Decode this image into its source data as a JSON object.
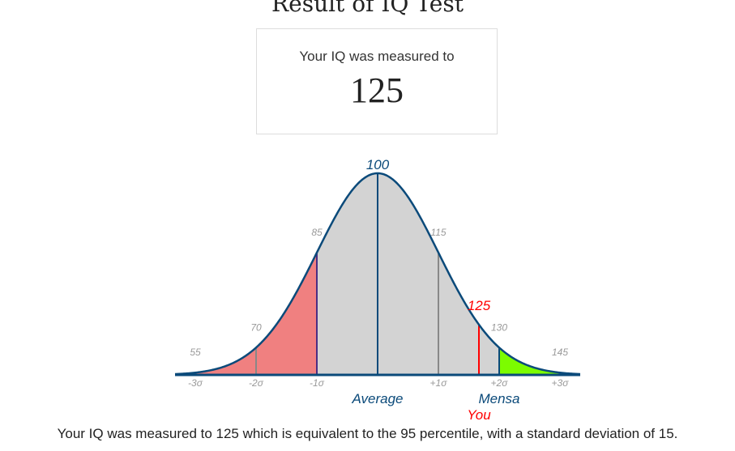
{
  "page": {
    "title": "Result of IQ Test",
    "result_label": "Your IQ was measured to",
    "result_value": "125",
    "summary": "Your IQ was measured to 125 which is equivalent to the 95 percentile, with a standard deviation of 15."
  },
  "chart_data": {
    "type": "area",
    "title": "",
    "mean": 100,
    "sd": 15,
    "xlim": [
      55,
      145
    ],
    "score": 125,
    "score_label": "125",
    "score_caption": "You",
    "iq_labels": [
      {
        "value": 55,
        "label": "55"
      },
      {
        "value": 70,
        "label": "70"
      },
      {
        "value": 85,
        "label": "85"
      },
      {
        "value": 100,
        "label": "100"
      },
      {
        "value": 115,
        "label": "115"
      },
      {
        "value": 130,
        "label": "130"
      },
      {
        "value": 145,
        "label": "145"
      }
    ],
    "sigma_labels": [
      {
        "value": 55,
        "label": "-3σ"
      },
      {
        "value": 70,
        "label": "-2σ"
      },
      {
        "value": 85,
        "label": "-1σ"
      },
      {
        "value": 115,
        "label": "+1σ"
      },
      {
        "value": 130,
        "label": "+2σ"
      },
      {
        "value": 145,
        "label": "+3σ"
      }
    ],
    "region_captions": [
      {
        "value": 100,
        "label": "Average"
      },
      {
        "value": 130,
        "label": "Mensa"
      }
    ],
    "shaded_regions": [
      {
        "from": 55,
        "to": 85,
        "color": "#f08080"
      },
      {
        "from": 85,
        "to": 130,
        "color": "#d3d3d3"
      },
      {
        "from": 130,
        "to": 145,
        "color": "#7cfc00"
      }
    ],
    "markers": [
      {
        "value": 70,
        "color": "#888888"
      },
      {
        "value": 85,
        "color": "#4b2e83"
      },
      {
        "value": 100,
        "color": "#0b4a7a"
      },
      {
        "value": 115,
        "color": "#888888"
      },
      {
        "value": 125,
        "color": "#ff0000"
      },
      {
        "value": 130,
        "color": "#0b4a7a"
      }
    ],
    "colors": {
      "curve": "#0b4a7a",
      "iq_label": "#999999",
      "sigma_label": "#999999",
      "mean_label": "#0b4a7a",
      "caption": "#0b4a7a",
      "score": "#ff0000"
    }
  }
}
